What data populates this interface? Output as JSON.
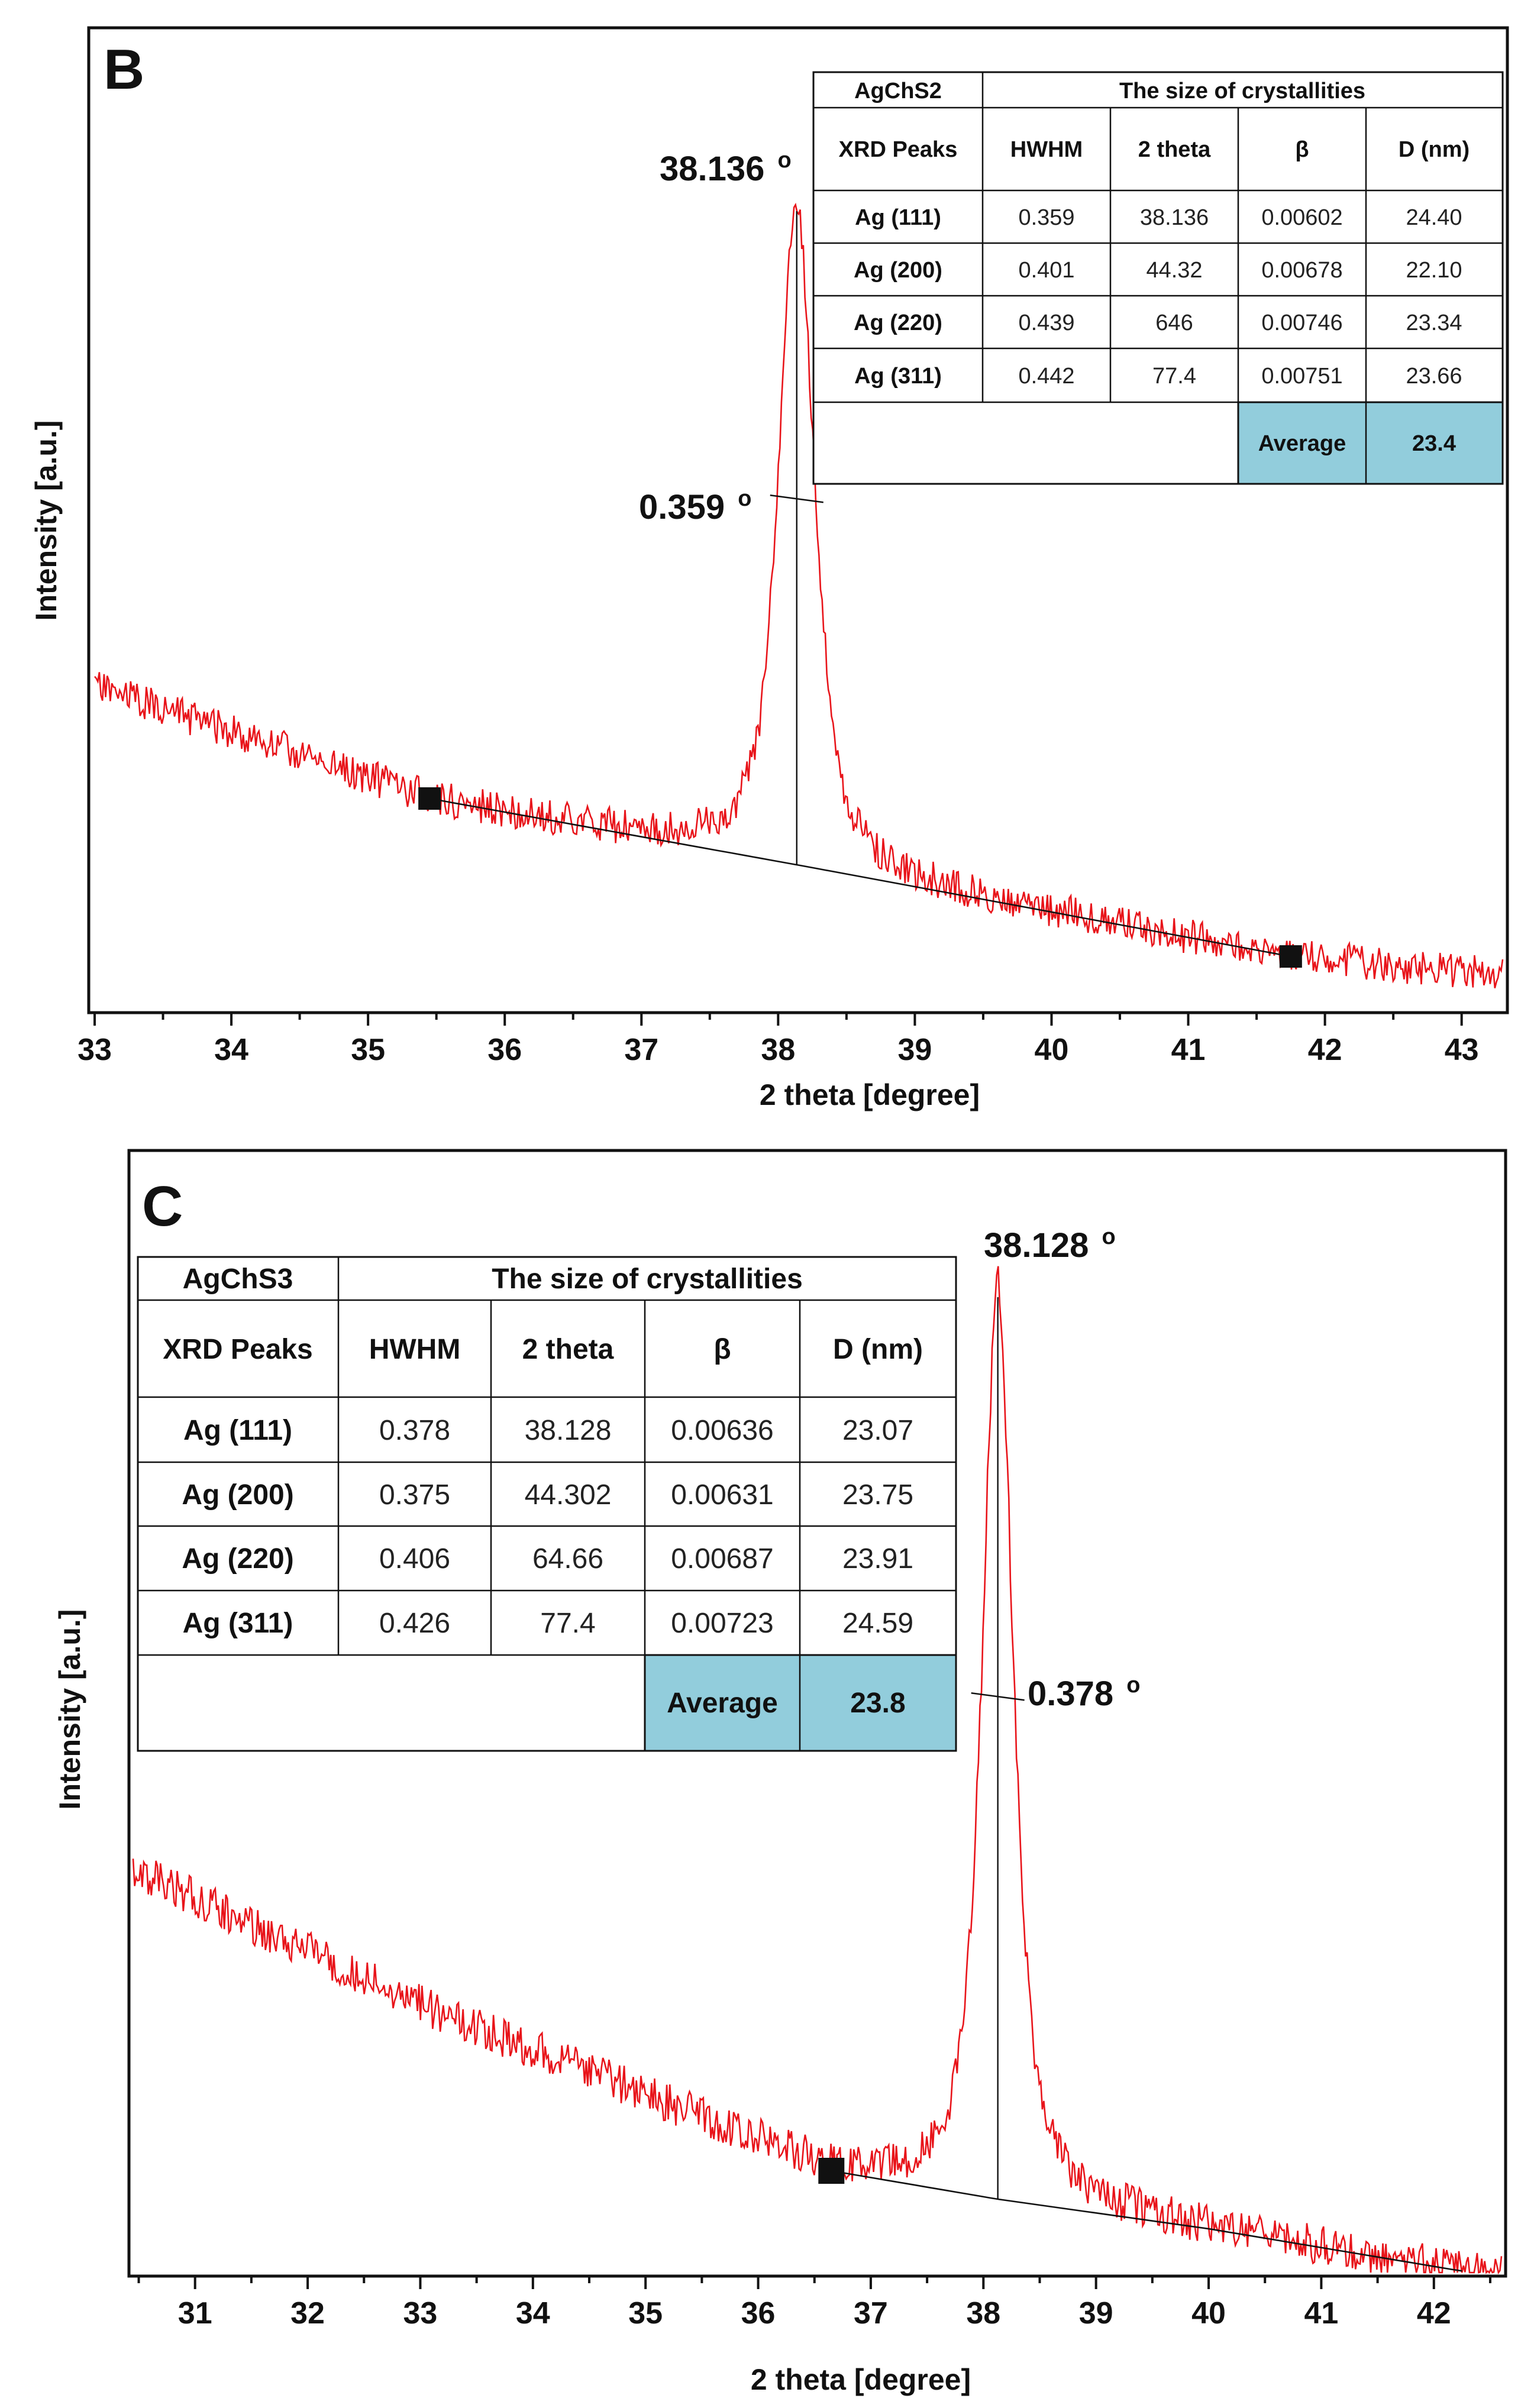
{
  "chart_data": [
    {
      "type": "line",
      "panel_label": "B",
      "xlabel": "2 theta [degree]",
      "ylabel": "Intensity [a.u.]",
      "xlim": [
        33,
        43.3
      ],
      "xticks": [
        33,
        34,
        35,
        36,
        37,
        38,
        39,
        40,
        41,
        42,
        43
      ],
      "peak": {
        "position": 38.136,
        "position_label": "38.136",
        "fwhm_label": "0.359",
        "degree_symbol": "o"
      },
      "baseline_points": [
        35.45,
        41.75
      ],
      "table": {
        "sample": "AgChS2",
        "group_header": "The size of crystallities",
        "columns": [
          "XRD Peaks",
          "HWHM",
          "2 theta",
          "β",
          "D (nm)"
        ],
        "rows": [
          [
            "Ag (111)",
            "0.359",
            "38.136",
            "0.00602",
            "24.40"
          ],
          [
            "Ag (200)",
            "0.401",
            "44.32",
            "0.00678",
            "22.10"
          ],
          [
            "Ag (220)",
            "0.439",
            "646",
            "0.00746",
            "23.34"
          ],
          [
            "Ag (311)",
            "0.442",
            "77.4",
            "0.00751",
            "23.66"
          ]
        ],
        "average_label": "Average",
        "average_value": "23.4"
      }
    },
    {
      "type": "line",
      "panel_label": "C",
      "xlabel": "2 theta [degree]",
      "ylabel": "Intensity [a.u.]",
      "xlim": [
        30.45,
        42.6
      ],
      "xticks": [
        31,
        32,
        33,
        34,
        35,
        36,
        37,
        38,
        39,
        40,
        41,
        42
      ],
      "peak": {
        "position": 38.128,
        "position_label": "38.128",
        "fwhm_label": "0.378",
        "degree_symbol": "o"
      },
      "baseline_points": [
        36.65
      ],
      "table": {
        "sample": "AgChS3",
        "group_header": "The size of crystallities",
        "columns": [
          "XRD Peaks",
          "HWHM",
          "2 theta",
          "β",
          "D (nm)"
        ],
        "rows": [
          [
            "Ag (111)",
            "0.378",
            "38.128",
            "0.00636",
            "23.07"
          ],
          [
            "Ag (200)",
            "0.375",
            "44.302",
            "0.00631",
            "23.75"
          ],
          [
            "Ag (220)",
            "0.406",
            "64.66",
            "0.00687",
            "23.91"
          ],
          [
            "Ag (311)",
            "0.426",
            "77.4",
            "0.00723",
            "24.59"
          ]
        ],
        "average_label": "Average",
        "average_value": "23.8"
      }
    }
  ],
  "colors": {
    "trace": "#e8141a",
    "highlight": "#92cddc",
    "ink": "#111111"
  }
}
